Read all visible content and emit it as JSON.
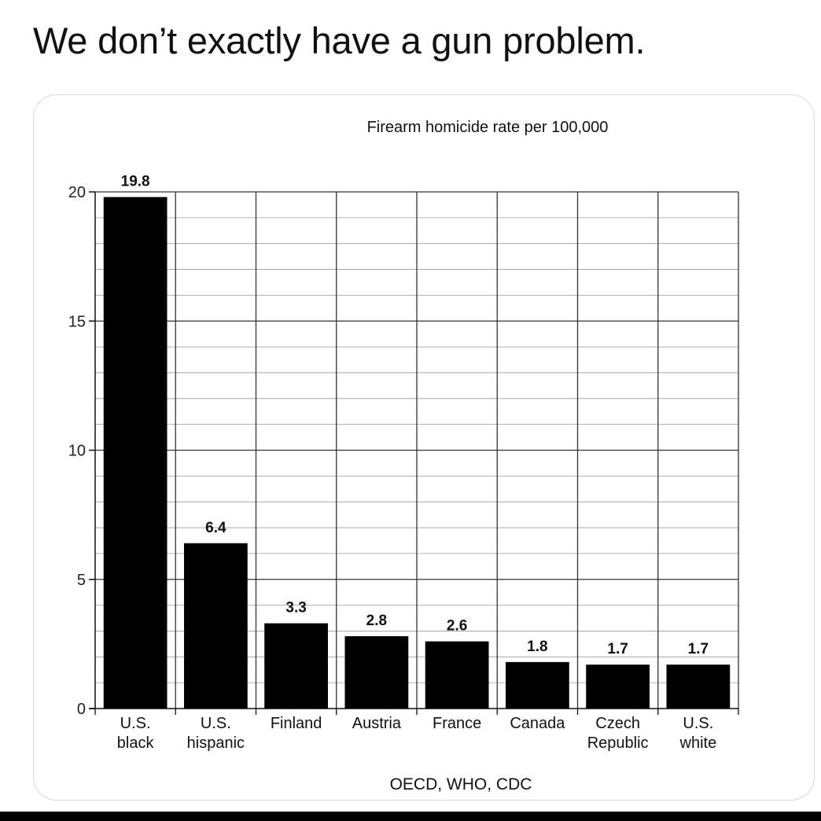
{
  "post": {
    "text": "We don’t exactly have a gun problem."
  },
  "chart_data": {
    "type": "bar",
    "title": "Firearm homicide rate per 100,000",
    "source": "OECD, WHO, CDC",
    "categories": [
      [
        "U.S.",
        "black"
      ],
      [
        "U.S.",
        "hispanic"
      ],
      [
        "Finland"
      ],
      [
        "Austria"
      ],
      [
        "France"
      ],
      [
        "Canada"
      ],
      [
        "Czech",
        "Republic"
      ],
      [
        "U.S.",
        "white"
      ]
    ],
    "values": [
      19.8,
      6.4,
      3.3,
      2.8,
      2.6,
      1.8,
      1.7,
      1.7
    ],
    "data_labels": [
      "19.8",
      "6.4",
      "3.3",
      "2.8",
      "2.6",
      "1.8",
      "1.7",
      "1.7"
    ],
    "ylim": [
      0,
      20
    ],
    "yticks": [
      0,
      5,
      10,
      15,
      20
    ],
    "grid": true,
    "bar_color": "#000000"
  }
}
